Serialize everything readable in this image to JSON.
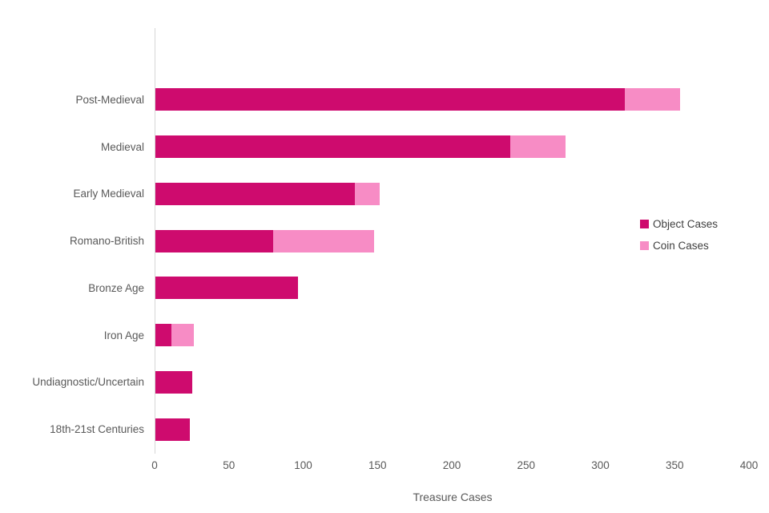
{
  "chart_data": {
    "type": "bar",
    "orientation": "horizontal",
    "stacked": true,
    "title": "",
    "xlabel": "Treasure Cases",
    "ylabel": "",
    "xlim": [
      0,
      400
    ],
    "x_ticks": [
      0,
      50,
      100,
      150,
      200,
      250,
      300,
      350,
      400
    ],
    "grid": false,
    "legend_position": "right",
    "categories": [
      "Post-Medieval",
      "Medieval",
      "Early Medieval",
      "Romano-British",
      "Bronze Age",
      "Iron Age",
      "Undiagnostic/Uncertain",
      "18th-21st Centuries"
    ],
    "series": [
      {
        "name": "Object Cases",
        "color": "#CE0B6E",
        "values": [
          316,
          239,
          134,
          79,
          96,
          11,
          25,
          23
        ]
      },
      {
        "name": "Coin Cases",
        "color": "#F78CC5",
        "values": [
          37,
          37,
          17,
          68,
          0,
          15,
          0,
          0
        ]
      }
    ]
  },
  "colors": {
    "axis_line": "#d6d6d6",
    "axis_text": "#595959",
    "legend_text": "#3f3f3f",
    "background": "#ffffff"
  }
}
